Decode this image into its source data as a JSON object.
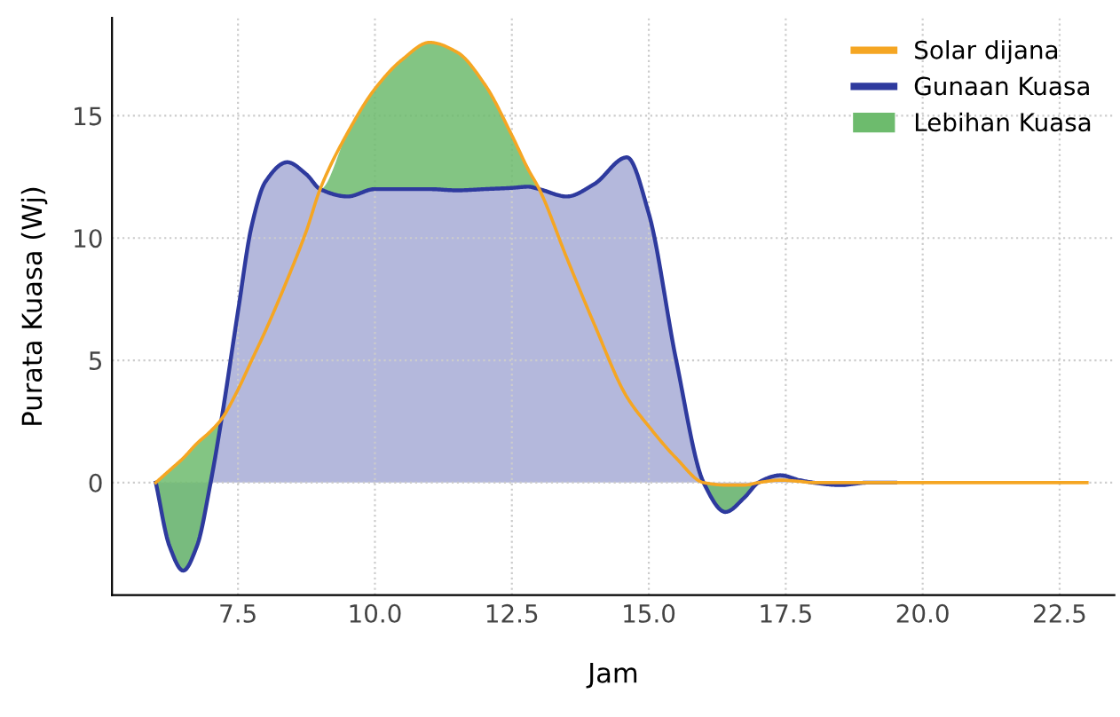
{
  "chart_data": {
    "type": "line",
    "xlabel": "Jam",
    "ylabel": "Purata Kuasa (Wj)",
    "x": [
      6,
      6.25,
      6.5,
      6.75,
      7,
      7.2,
      7.5,
      7.75,
      8,
      8.4,
      8.75,
      9,
      9.5,
      10,
      10.5,
      11,
      11.5,
      12,
      12.5,
      12.8,
      13,
      13.5,
      14,
      14.6,
      15,
      15.5,
      16,
      16.4,
      16.75,
      17,
      17.4,
      17.75,
      18,
      18.5,
      19,
      19.5,
      20,
      21,
      22,
      23
    ],
    "series": [
      {
        "name": "Solar dijana",
        "color": "#f5a623",
        "values": [
          0,
          0.5,
          1,
          1.6,
          2.1,
          2.6,
          3.8,
          5,
          6.2,
          8.3,
          10.3,
          12,
          14.3,
          16.1,
          17.3,
          18,
          17.6,
          16.3,
          14.2,
          12.8,
          12,
          9.2,
          6.5,
          3.5,
          2.3,
          1,
          0,
          -0.1,
          -0.1,
          0,
          0.1,
          0.05,
          0,
          0,
          0,
          0,
          0,
          0,
          0,
          0
        ]
      },
      {
        "type": "area",
        "name": "Gunaan Kuasa",
        "color": "#2e3a9e",
        "values": [
          0,
          -2.6,
          -3.6,
          -2.6,
          0,
          2.6,
          7,
          10.5,
          12.3,
          13.1,
          12.6,
          12,
          11.7,
          12,
          12,
          12,
          11.95,
          12,
          12.05,
          12.1,
          12,
          11.7,
          12.2,
          13.3,
          11,
          5,
          0,
          -1.2,
          -0.6,
          0,
          0.3,
          0.1,
          0,
          -0.1,
          0,
          0,
          null,
          null,
          null,
          null
        ]
      },
      {
        "type": "area",
        "name": "Lebihan Kuasa",
        "color": "#6dbb6d",
        "values": [
          0,
          3.1,
          4.6,
          4.2,
          2.1,
          0,
          0,
          0,
          0,
          0,
          0,
          0,
          2.6,
          4.1,
          5.3,
          6,
          5.65,
          4.3,
          2.15,
          0.7,
          0,
          0,
          0,
          0,
          0,
          0,
          0,
          1.1,
          0.5,
          0,
          0,
          0,
          0,
          0,
          0,
          0,
          null,
          null,
          null,
          null
        ]
      }
    ],
    "stacked": true,
    "xlim": [
      5.2,
      23.5
    ],
    "ylim": [
      -4.6,
      19
    ],
    "xticks": [
      {
        "value": 7.5,
        "label": "7.5"
      },
      {
        "value": 10,
        "label": "10.0"
      },
      {
        "value": 12.5,
        "label": "12.5"
      },
      {
        "value": 15,
        "label": "15.0"
      },
      {
        "value": 17.5,
        "label": "17.5"
      },
      {
        "value": 20,
        "label": "20.0"
      },
      {
        "value": 22.5,
        "label": "22.5"
      }
    ],
    "yticks": [
      0,
      5,
      10,
      15
    ],
    "grid": true,
    "legend": "top right"
  }
}
